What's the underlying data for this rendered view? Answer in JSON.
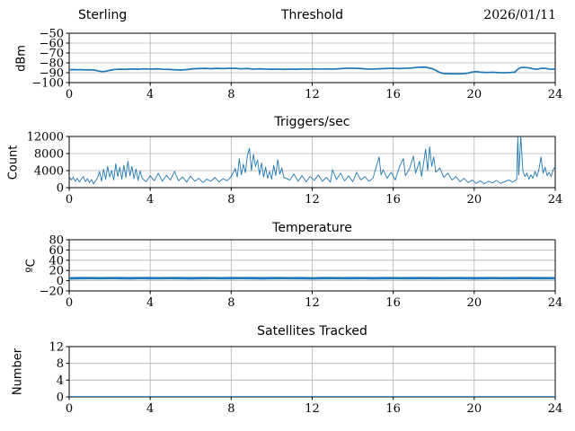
{
  "figure": {
    "background": "#ffffff",
    "grid_color": "#b0b0b0",
    "spine_color": "#000000"
  },
  "chart_data": [
    {
      "type": "line",
      "name": "threshold",
      "title_left": "Sterling",
      "title": "Threshold",
      "title_right": "2026/01/11",
      "ylabel": "dBm",
      "xlabel": "",
      "xlim": [
        0,
        24
      ],
      "ylim": [
        -100,
        -50
      ],
      "xticks": [
        0,
        4,
        8,
        12,
        16,
        20,
        24
      ],
      "yticks": [
        -100,
        -90,
        -80,
        -70,
        -60,
        -50
      ],
      "grid": true,
      "legend": false,
      "line_color": "#1f77b4",
      "line_width": 1.7,
      "points": [
        [
          0,
          -87
        ],
        [
          0.2,
          -86.8
        ],
        [
          0.4,
          -87
        ],
        [
          0.6,
          -86.9
        ],
        [
          0.8,
          -87.1
        ],
        [
          1.0,
          -87
        ],
        [
          1.2,
          -87.2
        ],
        [
          1.4,
          -88
        ],
        [
          1.6,
          -88.8
        ],
        [
          1.8,
          -88.6
        ],
        [
          2.0,
          -87.6
        ],
        [
          2.2,
          -86.8
        ],
        [
          2.5,
          -86.4
        ],
        [
          2.8,
          -86.6
        ],
        [
          3.1,
          -86.2
        ],
        [
          3.4,
          -86.5
        ],
        [
          3.7,
          -86.1
        ],
        [
          4.0,
          -86.3
        ],
        [
          4.3,
          -86.0
        ],
        [
          4.6,
          -86.4
        ],
        [
          4.9,
          -86.6
        ],
        [
          5.2,
          -87.0
        ],
        [
          5.5,
          -87.3
        ],
        [
          5.8,
          -86.8
        ],
        [
          6.1,
          -86.0
        ],
        [
          6.4,
          -85.8
        ],
        [
          6.7,
          -85.6
        ],
        [
          7.0,
          -85.9
        ],
        [
          7.3,
          -85.6
        ],
        [
          7.6,
          -85.8
        ],
        [
          7.9,
          -85.6
        ],
        [
          8.2,
          -85.5
        ],
        [
          8.5,
          -86.0
        ],
        [
          8.8,
          -85.7
        ],
        [
          9.1,
          -86.4
        ],
        [
          9.4,
          -86.0
        ],
        [
          9.7,
          -86.3
        ],
        [
          10.0,
          -86.5
        ],
        [
          10.3,
          -86.3
        ],
        [
          10.6,
          -86.6
        ],
        [
          10.9,
          -86.3
        ],
        [
          11.2,
          -86.5
        ],
        [
          11.5,
          -86.2
        ],
        [
          11.8,
          -86.4
        ],
        [
          12.1,
          -86.1
        ],
        [
          12.4,
          -86.3
        ],
        [
          12.7,
          -86.1
        ],
        [
          13.0,
          -86.3
        ],
        [
          13.3,
          -86.0
        ],
        [
          13.6,
          -85.6
        ],
        [
          13.9,
          -85.4
        ],
        [
          14.2,
          -85.6
        ],
        [
          14.5,
          -85.9
        ],
        [
          14.8,
          -86.4
        ],
        [
          15.1,
          -86.2
        ],
        [
          15.4,
          -85.9
        ],
        [
          15.7,
          -85.7
        ],
        [
          16.0,
          -85.5
        ],
        [
          16.3,
          -85.8
        ],
        [
          16.6,
          -85.5
        ],
        [
          16.9,
          -85.2
        ],
        [
          17.1,
          -84.8
        ],
        [
          17.3,
          -84.4
        ],
        [
          17.5,
          -84.3
        ],
        [
          17.7,
          -84.8
        ],
        [
          17.9,
          -85.8
        ],
        [
          18.1,
          -87.5
        ],
        [
          18.3,
          -89.8
        ],
        [
          18.5,
          -90.8
        ],
        [
          18.8,
          -91.0
        ],
        [
          19.1,
          -91.2
        ],
        [
          19.4,
          -91.0
        ],
        [
          19.7,
          -90.4
        ],
        [
          19.9,
          -89.3
        ],
        [
          20.1,
          -88.8
        ],
        [
          20.3,
          -89.4
        ],
        [
          20.6,
          -89.8
        ],
        [
          20.9,
          -89.5
        ],
        [
          21.2,
          -89.9
        ],
        [
          21.5,
          -90.0
        ],
        [
          21.8,
          -89.7
        ],
        [
          22.0,
          -89.4
        ],
        [
          22.15,
          -86.5
        ],
        [
          22.3,
          -84.8
        ],
        [
          22.5,
          -84.6
        ],
        [
          22.7,
          -85.1
        ],
        [
          22.9,
          -86.0
        ],
        [
          23.1,
          -86.5
        ],
        [
          23.3,
          -85.6
        ],
        [
          23.5,
          -85.5
        ],
        [
          23.7,
          -86.3
        ],
        [
          23.9,
          -86.5
        ],
        [
          24,
          -86.2
        ]
      ]
    },
    {
      "type": "line",
      "name": "triggers",
      "title": "Triggers/sec",
      "ylabel": "Count",
      "xlabel": "",
      "xlim": [
        0,
        24
      ],
      "ylim": [
        0,
        12000
      ],
      "xticks": [
        0,
        4,
        8,
        12,
        16,
        20,
        24
      ],
      "yticks": [
        0,
        4000,
        8000,
        12000
      ],
      "grid": true,
      "legend": false,
      "line_color": "#1f77b4",
      "line_width": 0.9,
      "points": [
        [
          0,
          2600
        ],
        [
          0.1,
          1800
        ],
        [
          0.2,
          2400
        ],
        [
          0.3,
          1500
        ],
        [
          0.4,
          2200
        ],
        [
          0.5,
          1300
        ],
        [
          0.6,
          2000
        ],
        [
          0.7,
          2600
        ],
        [
          0.8,
          1400
        ],
        [
          0.9,
          2100
        ],
        [
          1.0,
          1200
        ],
        [
          1.1,
          1900
        ],
        [
          1.2,
          900
        ],
        [
          1.3,
          1600
        ],
        [
          1.4,
          2300
        ],
        [
          1.5,
          3800
        ],
        [
          1.6,
          1500
        ],
        [
          1.7,
          4300
        ],
        [
          1.8,
          2000
        ],
        [
          1.9,
          5000
        ],
        [
          2.0,
          2500
        ],
        [
          2.1,
          4000
        ],
        [
          2.2,
          1800
        ],
        [
          2.3,
          5600
        ],
        [
          2.4,
          2600
        ],
        [
          2.5,
          4800
        ],
        [
          2.6,
          2000
        ],
        [
          2.7,
          5200
        ],
        [
          2.8,
          2400
        ],
        [
          2.9,
          6200
        ],
        [
          3.0,
          2800
        ],
        [
          3.1,
          5000
        ],
        [
          3.2,
          2100
        ],
        [
          3.3,
          4400
        ],
        [
          3.4,
          1700
        ],
        [
          3.5,
          3900
        ],
        [
          3.6,
          2200
        ],
        [
          3.8,
          1400
        ],
        [
          4.0,
          2800
        ],
        [
          4.2,
          1600
        ],
        [
          4.4,
          3400
        ],
        [
          4.6,
          1500
        ],
        [
          4.8,
          2900
        ],
        [
          5.0,
          1800
        ],
        [
          5.2,
          3800
        ],
        [
          5.4,
          1600
        ],
        [
          5.6,
          2500
        ],
        [
          5.8,
          1300
        ],
        [
          6.0,
          2700
        ],
        [
          6.2,
          1500
        ],
        [
          6.4,
          2200
        ],
        [
          6.6,
          1200
        ],
        [
          6.8,
          2000
        ],
        [
          7.0,
          1500
        ],
        [
          7.2,
          2400
        ],
        [
          7.4,
          1300
        ],
        [
          7.6,
          2100
        ],
        [
          7.8,
          1600
        ],
        [
          8.0,
          2600
        ],
        [
          8.2,
          4500
        ],
        [
          8.3,
          2500
        ],
        [
          8.4,
          6800
        ],
        [
          8.5,
          3000
        ],
        [
          8.6,
          5500
        ],
        [
          8.7,
          3500
        ],
        [
          8.8,
          7600
        ],
        [
          8.9,
          9200
        ],
        [
          9.0,
          4000
        ],
        [
          9.1,
          7800
        ],
        [
          9.2,
          5000
        ],
        [
          9.3,
          6500
        ],
        [
          9.4,
          3000
        ],
        [
          9.5,
          5800
        ],
        [
          9.6,
          2500
        ],
        [
          9.7,
          4800
        ],
        [
          9.8,
          2200
        ],
        [
          9.9,
          3800
        ],
        [
          10.0,
          2000
        ],
        [
          10.1,
          5200
        ],
        [
          10.2,
          2800
        ],
        [
          10.3,
          6600
        ],
        [
          10.4,
          3200
        ],
        [
          10.5,
          4600
        ],
        [
          10.6,
          2400
        ],
        [
          10.9,
          1800
        ],
        [
          11.1,
          3200
        ],
        [
          11.3,
          1500
        ],
        [
          11.5,
          2800
        ],
        [
          11.7,
          1400
        ],
        [
          11.9,
          2600
        ],
        [
          12.1,
          1700
        ],
        [
          12.3,
          3000
        ],
        [
          12.5,
          1500
        ],
        [
          12.7,
          2400
        ],
        [
          12.9,
          1300
        ],
        [
          13.0,
          4200
        ],
        [
          13.2,
          1900
        ],
        [
          13.4,
          3400
        ],
        [
          13.6,
          1600
        ],
        [
          13.8,
          2800
        ],
        [
          14.0,
          1400
        ],
        [
          14.2,
          3600
        ],
        [
          14.4,
          1800
        ],
        [
          14.6,
          2600
        ],
        [
          14.8,
          1500
        ],
        [
          15.0,
          2200
        ],
        [
          15.3,
          7200
        ],
        [
          15.4,
          3000
        ],
        [
          15.5,
          4200
        ],
        [
          15.7,
          2200
        ],
        [
          15.9,
          3600
        ],
        [
          16.1,
          1800
        ],
        [
          16.3,
          4800
        ],
        [
          16.5,
          6800
        ],
        [
          16.6,
          2800
        ],
        [
          16.8,
          4400
        ],
        [
          17.0,
          7400
        ],
        [
          17.1,
          3400
        ],
        [
          17.3,
          6200
        ],
        [
          17.4,
          2600
        ],
        [
          17.6,
          9000
        ],
        [
          17.7,
          4000
        ],
        [
          17.8,
          9600
        ],
        [
          17.9,
          5000
        ],
        [
          18.0,
          7200
        ],
        [
          18.1,
          3600
        ],
        [
          18.3,
          4600
        ],
        [
          18.5,
          2400
        ],
        [
          18.7,
          3400
        ],
        [
          18.9,
          1800
        ],
        [
          19.1,
          2600
        ],
        [
          19.3,
          1400
        ],
        [
          19.5,
          2200
        ],
        [
          19.7,
          1200
        ],
        [
          19.9,
          1800
        ],
        [
          20.1,
          1000
        ],
        [
          20.3,
          1600
        ],
        [
          20.5,
          900
        ],
        [
          20.7,
          1500
        ],
        [
          20.9,
          1100
        ],
        [
          21.1,
          1700
        ],
        [
          21.3,
          1000
        ],
        [
          21.5,
          1400
        ],
        [
          21.7,
          1800
        ],
        [
          21.9,
          1300
        ],
        [
          22.0,
          1600
        ],
        [
          22.1,
          2000
        ],
        [
          22.15,
          11800
        ],
        [
          22.2,
          3000
        ],
        [
          22.3,
          12000
        ],
        [
          22.4,
          4000
        ],
        [
          22.5,
          2600
        ],
        [
          22.6,
          3400
        ],
        [
          22.7,
          2000
        ],
        [
          22.8,
          3000
        ],
        [
          22.9,
          2200
        ],
        [
          23.0,
          3800
        ],
        [
          23.1,
          2600
        ],
        [
          23.2,
          4400
        ],
        [
          23.3,
          7200
        ],
        [
          23.4,
          3400
        ],
        [
          23.5,
          4800
        ],
        [
          23.6,
          2800
        ],
        [
          23.7,
          3600
        ],
        [
          23.8,
          2600
        ],
        [
          23.9,
          4200
        ],
        [
          24.0,
          5000
        ]
      ]
    },
    {
      "type": "line",
      "name": "temperature",
      "title": "Temperature",
      "ylabel": "ºC",
      "xlabel": "",
      "xlim": [
        0,
        24
      ],
      "ylim": [
        -20,
        80
      ],
      "xticks": [
        0,
        4,
        8,
        12,
        16,
        20,
        24
      ],
      "yticks": [
        -20,
        0,
        20,
        40,
        60,
        80
      ],
      "grid": true,
      "legend": false,
      "line_color": "#1f77b4",
      "line_width": 2.8,
      "points": [
        [
          0,
          4.6
        ],
        [
          0.5,
          4.9
        ],
        [
          1,
          5.0
        ],
        [
          1.5,
          4.8
        ],
        [
          2,
          5.0
        ],
        [
          2.5,
          4.9
        ],
        [
          3,
          4.7
        ],
        [
          3.5,
          5.0
        ],
        [
          4,
          4.9
        ],
        [
          4.5,
          4.8
        ],
        [
          5,
          5.0
        ],
        [
          5.5,
          4.9
        ],
        [
          6,
          4.7
        ],
        [
          6.5,
          4.9
        ],
        [
          7,
          5.0
        ],
        [
          7.5,
          4.8
        ],
        [
          8,
          4.9
        ],
        [
          8.5,
          5.0
        ],
        [
          9,
          4.9
        ],
        [
          9.5,
          4.7
        ],
        [
          10,
          4.9
        ],
        [
          10.5,
          5.0
        ],
        [
          11,
          4.8
        ],
        [
          11.5,
          4.9
        ],
        [
          12,
          4.6
        ],
        [
          12.5,
          4.9
        ],
        [
          13,
          5.0
        ],
        [
          13.5,
          4.8
        ],
        [
          14,
          4.9
        ],
        [
          14.5,
          5.0
        ],
        [
          15,
          4.7
        ],
        [
          15.5,
          4.9
        ],
        [
          16,
          5.0
        ],
        [
          16.5,
          4.8
        ],
        [
          17,
          4.9
        ],
        [
          17.5,
          5.0
        ],
        [
          18,
          4.9
        ],
        [
          18.5,
          4.8
        ],
        [
          19,
          5.0
        ],
        [
          19.5,
          4.9
        ],
        [
          20,
          4.7
        ],
        [
          20.5,
          4.9
        ],
        [
          21,
          5.0
        ],
        [
          21.5,
          4.8
        ],
        [
          22,
          4.9
        ],
        [
          22.5,
          5.0
        ],
        [
          23,
          4.9
        ],
        [
          23.5,
          4.8
        ],
        [
          24,
          4.9
        ]
      ]
    },
    {
      "type": "line",
      "name": "satellites",
      "title": "Satellites Tracked",
      "ylabel": "Number",
      "xlabel": "",
      "xlim": [
        0,
        24
      ],
      "ylim": [
        0,
        12
      ],
      "xticks": [
        0,
        4,
        8,
        12,
        16,
        20,
        24
      ],
      "yticks": [
        0,
        4,
        8,
        12
      ],
      "grid": true,
      "legend": false,
      "line_color": "#1f77b4",
      "line_width": 1.8,
      "points": [
        [
          0,
          0
        ],
        [
          24,
          0
        ]
      ]
    }
  ]
}
